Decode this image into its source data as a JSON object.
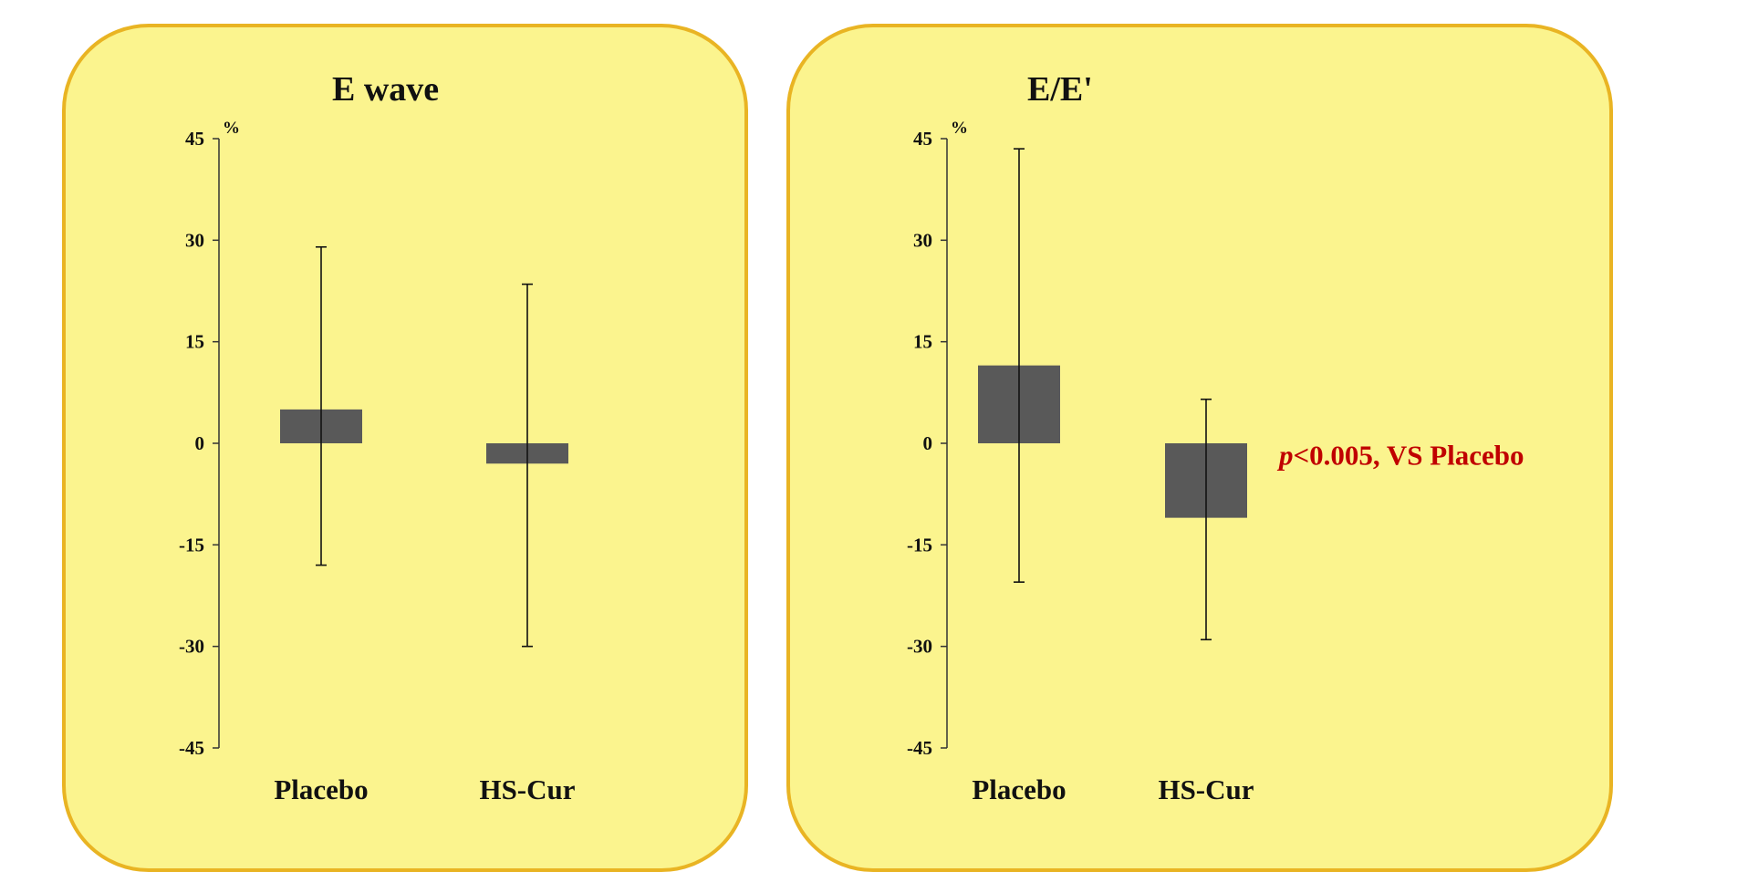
{
  "colors": {
    "panel_fill": "#fbf48e",
    "panel_border": "#e9b423",
    "bar": "#595959",
    "axis": "#333333",
    "annotation": "#c00000"
  },
  "chart_data": [
    {
      "type": "bar",
      "title": "E wave",
      "ylabel": "%",
      "ylim": [
        -45,
        45
      ],
      "yticks": [
        45,
        30,
        15,
        0,
        -15,
        -30,
        -45
      ],
      "categories": [
        "Placebo",
        "HS-Cur"
      ],
      "values": [
        5,
        -3
      ],
      "error_bars": [
        {
          "low": -18,
          "high": 29
        },
        {
          "low": -30,
          "high": 23.5
        }
      ],
      "grid": false,
      "annotation": null
    },
    {
      "type": "bar",
      "title": "E/E'",
      "ylabel": "%",
      "ylim": [
        -45,
        45
      ],
      "yticks": [
        45,
        30,
        15,
        0,
        -15,
        -30,
        -45
      ],
      "categories": [
        "Placebo",
        "HS-Cur"
      ],
      "values": [
        11.5,
        -11
      ],
      "error_bars": [
        {
          "low": -20.5,
          "high": 43.5
        },
        {
          "low": -29,
          "high": 6.5
        }
      ],
      "grid": false,
      "annotation": {
        "p_symbol": "p",
        "text": "<0.005, VS Placebo"
      }
    }
  ]
}
